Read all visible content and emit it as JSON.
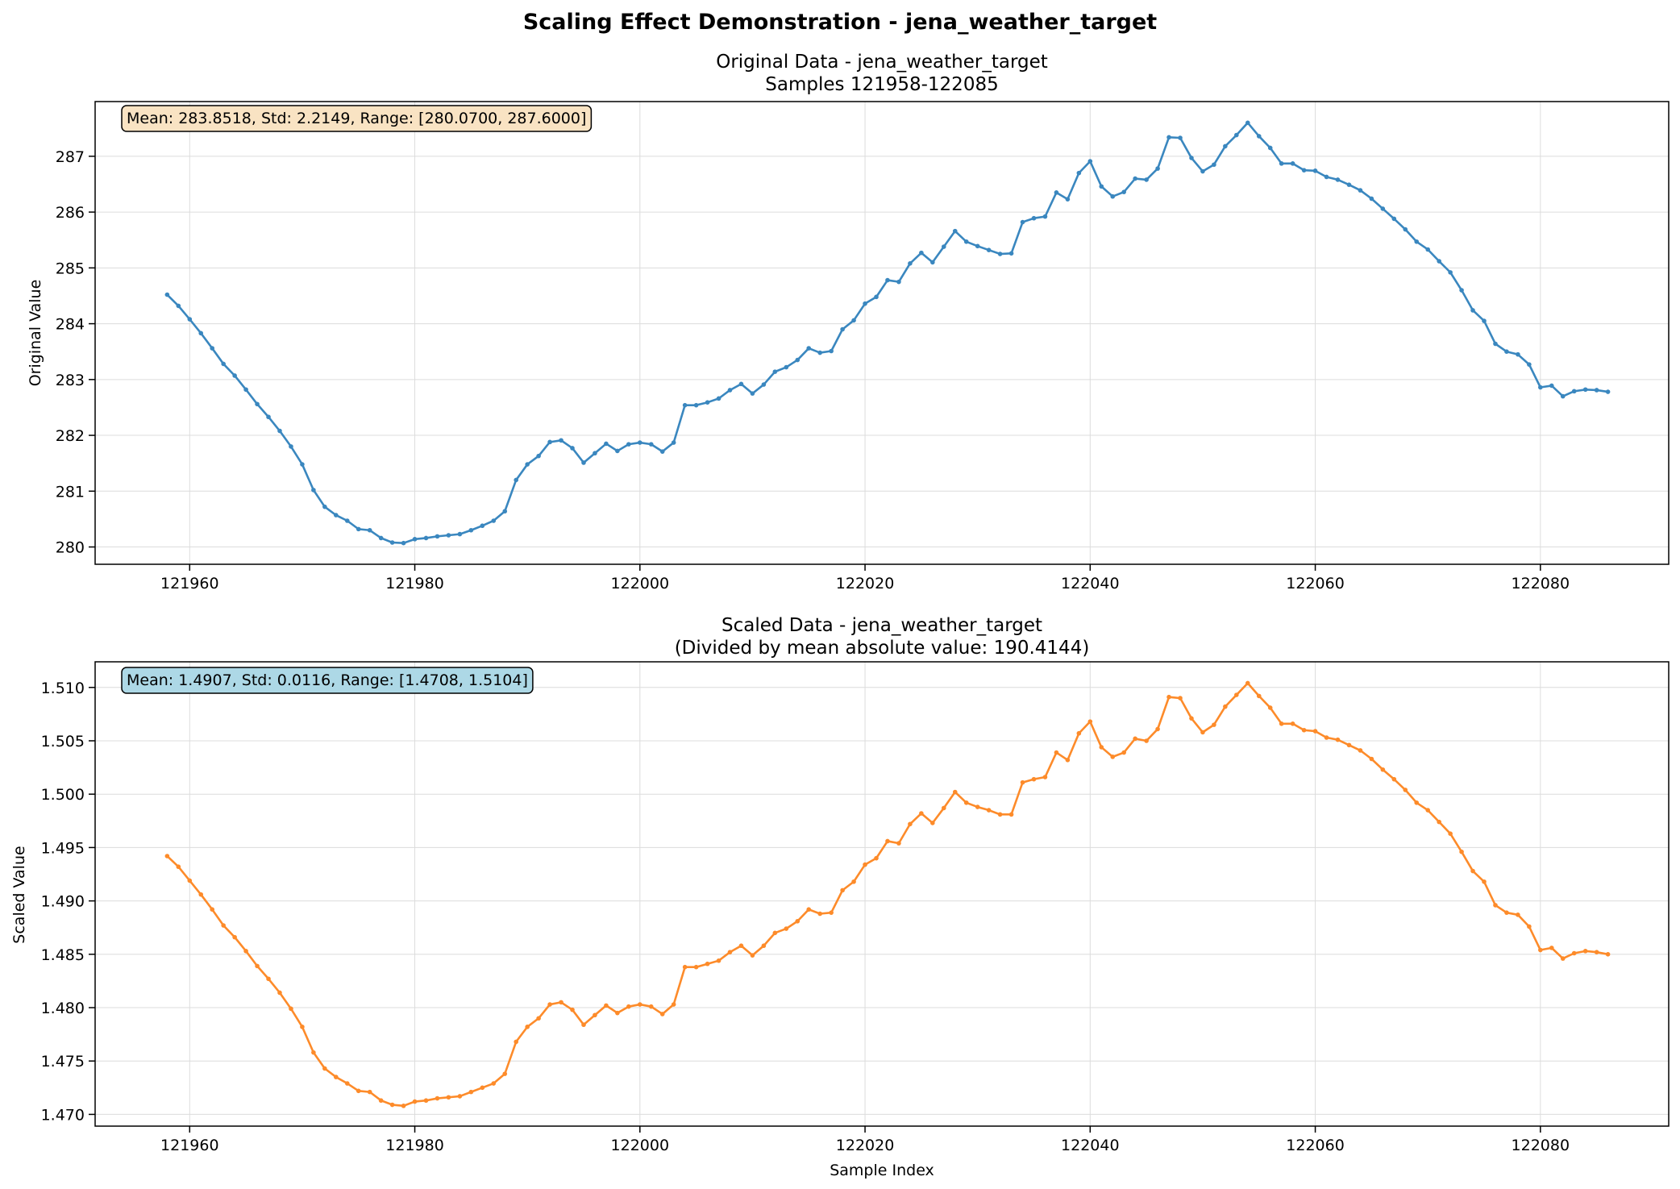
{
  "figure": {
    "suptitle": "Scaling Effect Demonstration - jena_weather_target"
  },
  "chart_data": [
    {
      "type": "line",
      "title_line1": "Original Data - jena_weather_target",
      "title_line2": "Samples 121958-122085",
      "xlabel": "",
      "ylabel": "Original Value",
      "xlim": [
        121951.6,
        122091.4
      ],
      "ylim": [
        279.69,
        287.98
      ],
      "xticks": [
        121960,
        121980,
        122000,
        122020,
        122040,
        122060,
        122080
      ],
      "yticks": [
        280,
        281,
        282,
        283,
        284,
        285,
        286,
        287
      ],
      "ytick_decimals": 0,
      "grid": true,
      "color": "#3a87bf",
      "stats_box": {
        "text": "Mean: 283.8518, Std: 2.2149, Range: [280.0700, 287.6000]",
        "facecolor": "#f9e3c3"
      },
      "x_start": 121958,
      "x_end": 122085,
      "y": [
        284.52,
        284.32,
        284.08,
        283.83,
        283.56,
        283.28,
        283.07,
        282.82,
        282.56,
        282.33,
        282.08,
        281.8,
        281.48,
        281.02,
        280.72,
        280.57,
        280.47,
        280.32,
        280.3,
        280.16,
        280.08,
        280.07,
        280.14,
        280.16,
        280.19,
        280.21,
        280.23,
        280.3,
        280.38,
        280.47,
        280.64,
        281.2,
        281.48,
        281.63,
        281.88,
        281.91,
        281.77,
        281.51,
        281.68,
        281.85,
        281.72,
        281.84,
        281.87,
        281.84,
        281.71,
        281.87,
        282.54,
        282.54,
        282.59,
        282.66,
        282.81,
        282.92,
        282.75,
        282.91,
        283.14,
        283.22,
        283.35,
        283.56,
        283.48,
        283.51,
        283.9,
        284.06,
        284.36,
        284.48,
        284.78,
        284.75,
        285.08,
        285.27,
        285.1,
        285.38,
        285.66,
        285.47,
        285.39,
        285.32,
        285.25,
        285.26,
        285.82,
        285.89,
        285.92,
        286.35,
        286.23,
        286.7,
        286.91,
        286.46,
        286.28,
        286.36,
        286.6,
        286.58,
        286.78,
        287.34,
        287.33,
        286.97,
        286.73,
        286.85,
        287.18,
        287.38,
        287.6,
        287.36,
        287.15,
        286.87,
        286.87,
        286.75,
        286.74,
        286.63,
        286.58,
        286.49,
        286.39,
        286.24,
        286.06,
        285.88,
        285.69,
        285.47,
        285.33,
        285.12,
        284.92,
        284.6,
        284.24,
        284.05,
        283.64,
        283.5,
        283.45,
        283.27,
        282.86,
        282.89,
        282.7,
        282.79,
        282.82,
        282.81,
        282.78
      ]
    },
    {
      "type": "line",
      "title_line1": "Scaled Data - jena_weather_target",
      "title_line2": "(Divided by mean absolute value: 190.4144)",
      "xlabel": "Sample Index",
      "ylabel": "Scaled Value",
      "xlim": [
        121951.6,
        122091.4
      ],
      "ylim": [
        1.4689,
        1.5124
      ],
      "xticks": [
        121960,
        121980,
        122000,
        122020,
        122040,
        122060,
        122080
      ],
      "yticks": [
        1.47,
        1.475,
        1.48,
        1.485,
        1.49,
        1.495,
        1.5,
        1.505,
        1.51
      ],
      "ytick_decimals": 3,
      "grid": true,
      "color": "#fd8b2a",
      "stats_box": {
        "text": "Mean: 1.4907, Std: 0.0116, Range: [1.4708, 1.5104]",
        "facecolor": "#add8e6"
      },
      "x_start": 121958,
      "x_end": 122085,
      "y": [
        1.4942,
        1.4932,
        1.4919,
        1.4906,
        1.4892,
        1.4877,
        1.4866,
        1.4853,
        1.4839,
        1.4827,
        1.4814,
        1.4799,
        1.4782,
        1.4758,
        1.4743,
        1.4735,
        1.4729,
        1.4722,
        1.4721,
        1.4713,
        1.4709,
        1.4708,
        1.4712,
        1.4713,
        1.4715,
        1.4716,
        1.4717,
        1.4721,
        1.4725,
        1.4729,
        1.4738,
        1.4768,
        1.4782,
        1.479,
        1.4803,
        1.4805,
        1.4798,
        1.4784,
        1.4793,
        1.4802,
        1.4795,
        1.4801,
        1.4803,
        1.4801,
        1.4794,
        1.4803,
        1.4838,
        1.4838,
        1.4841,
        1.4844,
        1.4852,
        1.4858,
        1.4849,
        1.4858,
        1.487,
        1.4874,
        1.4881,
        1.4892,
        1.4888,
        1.4889,
        1.491,
        1.4918,
        1.4934,
        1.494,
        1.4956,
        1.4954,
        1.4972,
        1.4982,
        1.4973,
        1.4987,
        1.5002,
        1.4992,
        1.4988,
        1.4985,
        1.4981,
        1.4981,
        1.5011,
        1.5014,
        1.5016,
        1.5039,
        1.5032,
        1.5057,
        1.5068,
        1.5044,
        1.5035,
        1.5039,
        1.5052,
        1.505,
        1.5061,
        1.5091,
        1.509,
        1.5071,
        1.5058,
        1.5065,
        1.5082,
        1.5093,
        1.5104,
        1.5092,
        1.5081,
        1.5066,
        1.5066,
        1.506,
        1.5059,
        1.5053,
        1.5051,
        1.5046,
        1.5041,
        1.5033,
        1.5023,
        1.5014,
        1.5004,
        1.4992,
        1.4985,
        1.4974,
        1.4963,
        1.4946,
        1.4928,
        1.4918,
        1.4896,
        1.4889,
        1.4887,
        1.4876,
        1.4854,
        1.4856,
        1.4846,
        1.4851,
        1.4853,
        1.4852,
        1.485
      ]
    }
  ]
}
